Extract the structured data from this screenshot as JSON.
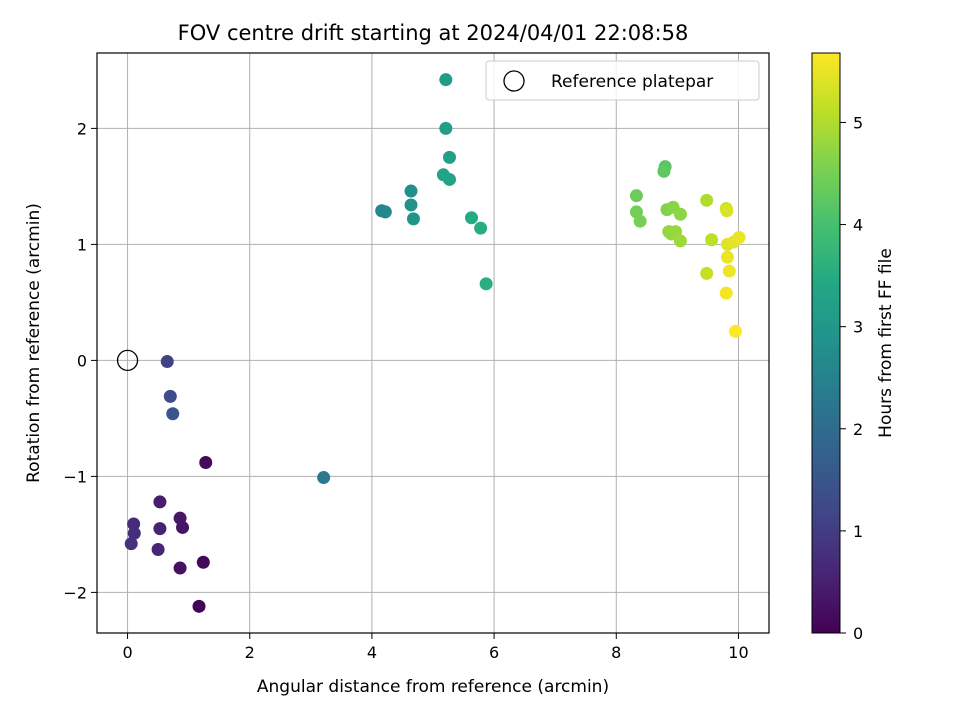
{
  "chart_data": {
    "type": "scatter",
    "title": "FOV centre drift starting at 2024/04/01 22:08:58",
    "xlabel": "Angular distance from reference (arcmin)",
    "ylabel": "Rotation from reference (arcmin)",
    "xlim": [
      -0.5,
      10.5
    ],
    "ylim": [
      -2.35,
      2.65
    ],
    "xticks": [
      0,
      2,
      4,
      6,
      8,
      10
    ],
    "yticks": [
      -2,
      -1,
      0,
      1,
      2
    ],
    "grid": true,
    "legend": {
      "placement": "top-right",
      "entries": [
        "Reference platepar"
      ]
    },
    "reference_point": {
      "x": 0,
      "y": 0
    },
    "colorbar": {
      "label": "Hours from first FF file",
      "range": [
        0,
        5.68
      ],
      "ticks": [
        0,
        1,
        2,
        3,
        4,
        5
      ],
      "colormap": "viridis"
    },
    "points": [
      {
        "x": 1.17,
        "y": -2.12,
        "c": 0.05
      },
      {
        "x": 1.24,
        "y": -1.74,
        "c": 0.1
      },
      {
        "x": 1.28,
        "y": -0.88,
        "c": 0.15
      },
      {
        "x": 0.86,
        "y": -1.79,
        "c": 0.25
      },
      {
        "x": 0.9,
        "y": -1.44,
        "c": 0.3
      },
      {
        "x": 0.86,
        "y": -1.36,
        "c": 0.35
      },
      {
        "x": 0.53,
        "y": -1.22,
        "c": 0.45
      },
      {
        "x": 0.53,
        "y": -1.45,
        "c": 0.55
      },
      {
        "x": 0.5,
        "y": -1.63,
        "c": 0.6
      },
      {
        "x": 0.1,
        "y": -1.41,
        "c": 0.7
      },
      {
        "x": 0.11,
        "y": -1.49,
        "c": 0.75
      },
      {
        "x": 0.06,
        "y": -1.58,
        "c": 0.8
      },
      {
        "x": 0.65,
        "y": -0.01,
        "c": 1.1
      },
      {
        "x": 0.7,
        "y": -0.31,
        "c": 1.3
      },
      {
        "x": 0.74,
        "y": -0.46,
        "c": 1.5
      },
      {
        "x": 3.21,
        "y": -1.01,
        "c": 2.3
      },
      {
        "x": 4.16,
        "y": 1.29,
        "c": 2.6
      },
      {
        "x": 4.22,
        "y": 1.28,
        "c": 2.65
      },
      {
        "x": 4.64,
        "y": 1.46,
        "c": 2.85
      },
      {
        "x": 4.64,
        "y": 1.34,
        "c": 2.9
      },
      {
        "x": 4.68,
        "y": 1.22,
        "c": 2.95
      },
      {
        "x": 5.21,
        "y": 2.42,
        "c": 3.1
      },
      {
        "x": 5.21,
        "y": 2.0,
        "c": 3.15
      },
      {
        "x": 5.27,
        "y": 1.75,
        "c": 3.2
      },
      {
        "x": 5.17,
        "y": 1.6,
        "c": 3.25
      },
      {
        "x": 5.27,
        "y": 1.56,
        "c": 3.3
      },
      {
        "x": 5.63,
        "y": 1.23,
        "c": 3.45
      },
      {
        "x": 5.78,
        "y": 1.14,
        "c": 3.5
      },
      {
        "x": 5.87,
        "y": 0.66,
        "c": 3.55
      },
      {
        "x": 8.8,
        "y": 1.67,
        "c": 4.2
      },
      {
        "x": 8.78,
        "y": 1.63,
        "c": 4.25
      },
      {
        "x": 8.33,
        "y": 1.42,
        "c": 4.4
      },
      {
        "x": 8.33,
        "y": 1.28,
        "c": 4.45
      },
      {
        "x": 8.39,
        "y": 1.2,
        "c": 4.5
      },
      {
        "x": 8.83,
        "y": 1.3,
        "c": 4.6
      },
      {
        "x": 8.93,
        "y": 1.32,
        "c": 4.65
      },
      {
        "x": 9.05,
        "y": 1.26,
        "c": 4.7
      },
      {
        "x": 8.86,
        "y": 1.11,
        "c": 4.75
      },
      {
        "x": 8.9,
        "y": 1.09,
        "c": 4.78
      },
      {
        "x": 8.97,
        "y": 1.11,
        "c": 4.8
      },
      {
        "x": 9.05,
        "y": 1.03,
        "c": 4.85
      },
      {
        "x": 9.48,
        "y": 1.38,
        "c": 5.0
      },
      {
        "x": 9.56,
        "y": 1.04,
        "c": 5.1
      },
      {
        "x": 9.48,
        "y": 0.75,
        "c": 5.2
      },
      {
        "x": 9.8,
        "y": 1.31,
        "c": 5.3
      },
      {
        "x": 9.81,
        "y": 1.29,
        "c": 5.35
      },
      {
        "x": 9.82,
        "y": 1.0,
        "c": 5.4
      },
      {
        "x": 9.92,
        "y": 1.02,
        "c": 5.45
      },
      {
        "x": 10.01,
        "y": 1.06,
        "c": 5.5
      },
      {
        "x": 9.82,
        "y": 0.89,
        "c": 5.52
      },
      {
        "x": 9.85,
        "y": 0.77,
        "c": 5.55
      },
      {
        "x": 9.8,
        "y": 0.58,
        "c": 5.6
      },
      {
        "x": 9.95,
        "y": 0.25,
        "c": 5.65
      }
    ]
  }
}
